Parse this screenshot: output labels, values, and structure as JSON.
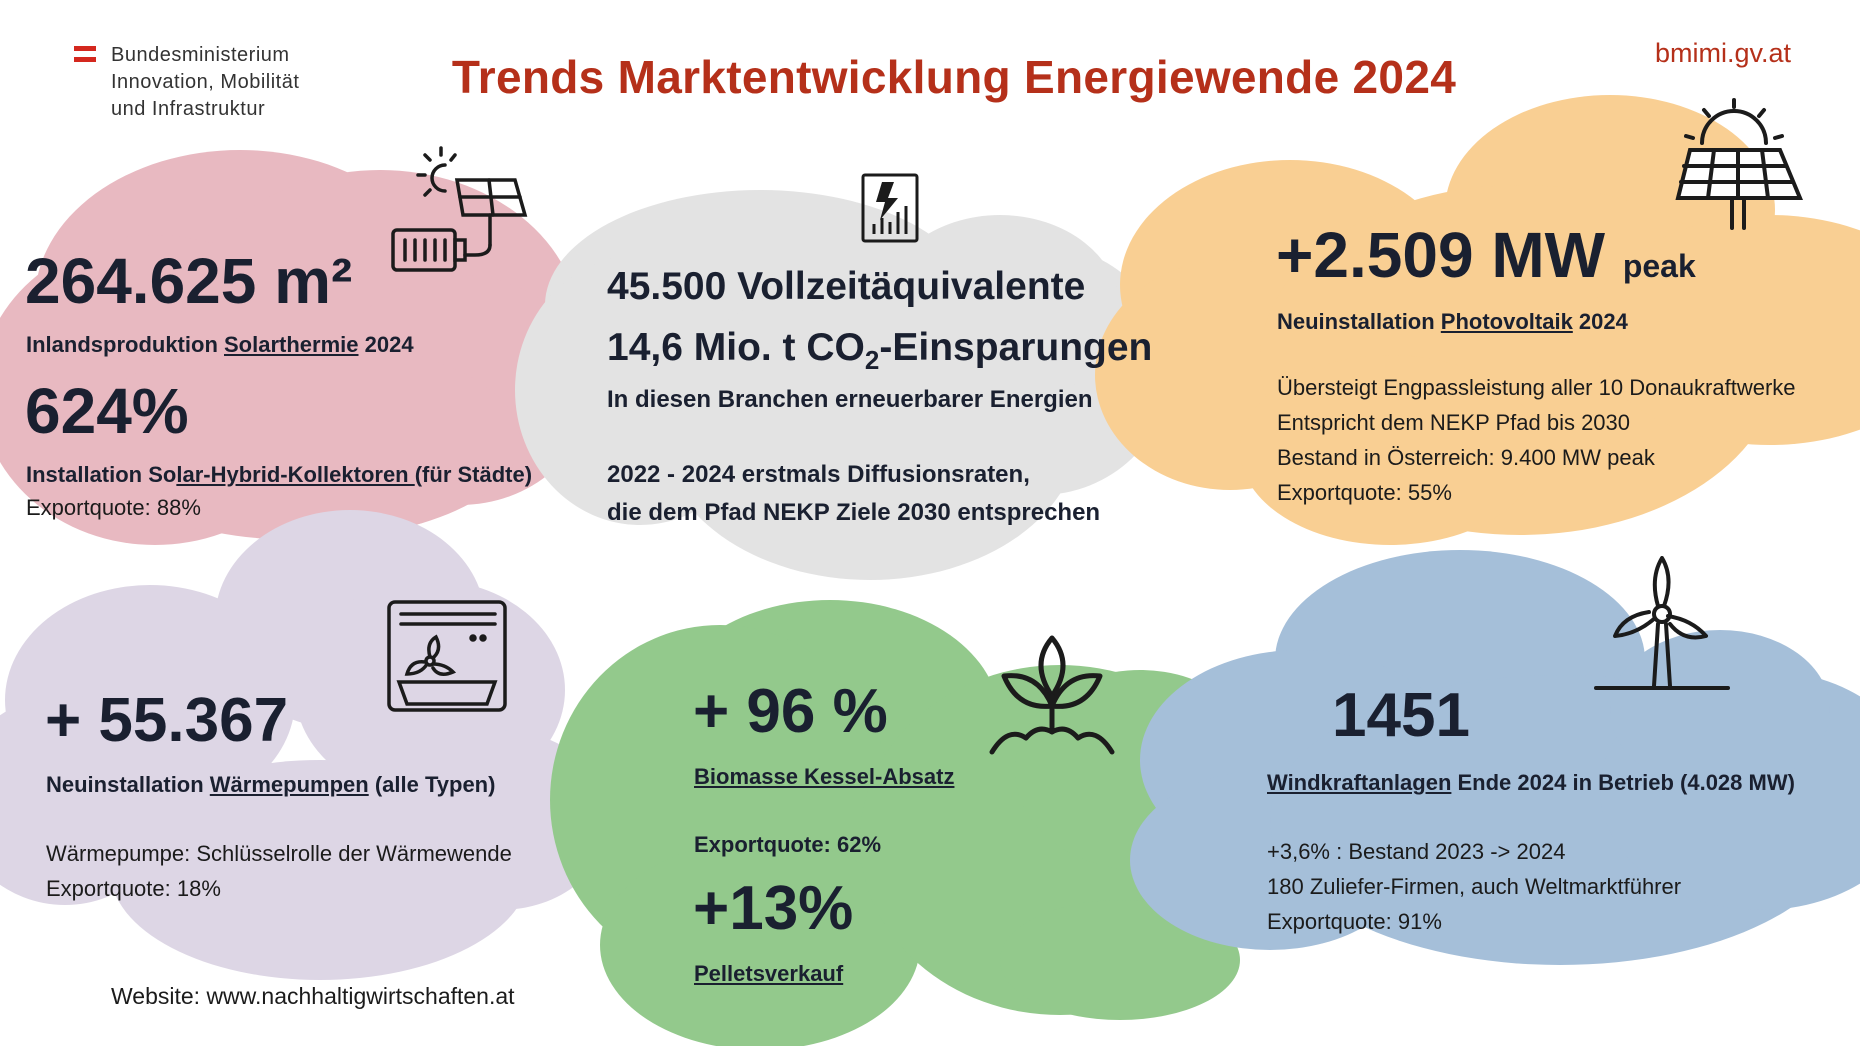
{
  "header": {
    "org_line1": "Bundesministerium",
    "org_line2": "Innovation, Mobilität",
    "org_line3": "und Infrastruktur",
    "title": "Trends Marktentwicklung Energiewende 2024",
    "website_top": "bmimi.gv.at"
  },
  "solarthermie": {
    "value": "264.625 m²",
    "label_prefix": "Inlandsproduktion ",
    "label_link": "Solarthermie",
    "label_suffix": " 2024",
    "value2": "624%",
    "label2_prefix": "Installation So",
    "label2_link": "lar-Hybrid-Kollektoren ",
    "label2_suffix": "(für Städte)",
    "export": "Exportquote: 88%"
  },
  "branchen": {
    "line1": "45.500 Vollzeitäquivalente",
    "line2_prefix": "14,6 Mio. t CO",
    "line2_sub": "2",
    "line2_suffix": "-Einsparungen",
    "line3": "In diesen Branchen erneuerbarer Energien",
    "line4": "2022 - 2024 erstmals Diffusionsraten,",
    "line5": "die dem Pfad NEKP Ziele 2030 entsprechen"
  },
  "photovoltaik": {
    "value": "+2.509 MW",
    "unit": "peak",
    "label_prefix": "Neuinstallation ",
    "label_link": "Photovoltaik",
    "label_suffix": " 2024",
    "line1": "Übersteigt Engpassleistung aller 10 Donaukraftwerke",
    "line2": "Entspricht dem NEKP Pfad bis 2030",
    "line3": "Bestand in Österreich: 9.400 MW peak",
    "export": "Exportquote: 55%"
  },
  "waermepumpen": {
    "value": "+ 55.367",
    "label_prefix": "Neuinstallation ",
    "label_link": "Wärmepumpen",
    "label_suffix": " (alle Typen)",
    "line1": "Wärmepumpe: Schlüsselrolle der Wärmewende",
    "export": "Exportquote: 18%"
  },
  "biomasse": {
    "value": "+ 96 %",
    "label": "Biomasse Kessel-Absatz",
    "export": "Exportquote: 62%",
    "value2": "+13%",
    "label2": "Pelletsverkauf"
  },
  "wind": {
    "value": "1451",
    "label_link": "Windkraftanlagen",
    "label_suffix": " Ende 2024 in Betrieb (4.028 MW)",
    "line1": "+3,6% : Bestand 2023 -> 2024",
    "line2": "180 Zuliefer-Firmen, auch Weltmarktführer",
    "export": "Exportquote: 91%"
  },
  "footer": {
    "website": "Website: www.nachhaltigwirtschaften.at"
  },
  "colors": {
    "pink": "#e8b9c1",
    "grey": "#e3e3e3",
    "orange": "#f9cf93",
    "lavender": "#ddd6e5",
    "green": "#93c98c",
    "blue": "#a5bfd9",
    "title_red": "#b5301a"
  },
  "icons": [
    "solar-battery-icon",
    "report-chart-icon",
    "sun-solar-panel-icon",
    "heat-pump-icon",
    "plant-sprout-icon",
    "wind-turbine-icon"
  ]
}
